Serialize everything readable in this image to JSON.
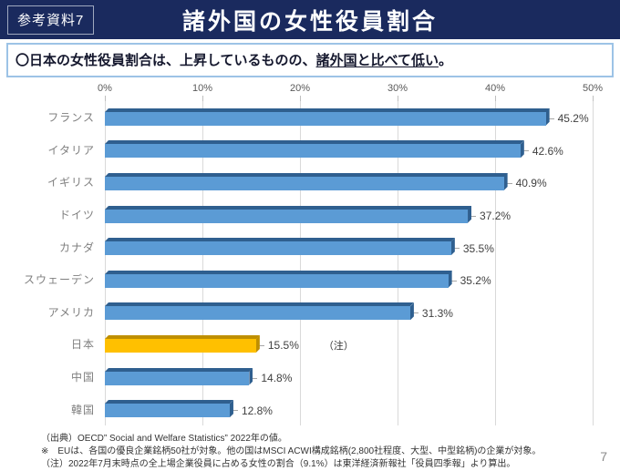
{
  "header": {
    "badge": "参考資料7",
    "title": "諸外国の女性役員割合"
  },
  "subtitle": {
    "prefix": "〇日本の女性役員割合は、上昇しているものの、",
    "underlined": "諸外国と比べて低い",
    "suffix": "。"
  },
  "chart_data": {
    "type": "bar",
    "orientation": "horizontal",
    "title": "",
    "xlabel": "",
    "ylabel": "",
    "xlim": [
      0,
      50
    ],
    "x_ticks": [
      "0%",
      "10%",
      "20%",
      "30%",
      "40%",
      "50%"
    ],
    "grid": true,
    "legend": false,
    "categories": [
      "フランス",
      "イタリア",
      "イギリス",
      "ドイツ",
      "カナダ",
      "スウェーデン",
      "アメリカ",
      "日本",
      "中国",
      "韓国"
    ],
    "values": [
      45.2,
      42.6,
      40.9,
      37.2,
      35.5,
      35.2,
      31.3,
      15.5,
      14.8,
      12.8
    ],
    "value_labels": [
      "45.2%",
      "42.6%",
      "40.9%",
      "37.2%",
      "35.5%",
      "35.2%",
      "31.3%",
      "15.5%",
      "14.8%",
      "12.8%"
    ],
    "annotations": [
      {
        "category": "日本",
        "text": "（注）"
      }
    ],
    "bar_color": "#5B9BD5",
    "bar_color_dark": "#2F5F8F",
    "highlight_category": "日本",
    "highlight_color": "#FFC000",
    "highlight_color_dark": "#BF8F00"
  },
  "footnotes": {
    "line1": "（出典）OECD” Social and Welfare Statistics” 2022年の値。",
    "line2": "※　EUは、各国の優良企業銘柄50社が対象。他の国はMSCI ACWI構成銘柄(2,800社程度、大型、中型銘柄)の企業が対象。",
    "line3": "（注）2022年7月末時点の全上場企業役員に占める女性の割合（9.1%）は東洋経済新報社「役員四季報」より算出。"
  },
  "page_number": "7",
  "colors": {
    "header_bg": "#1A2A5E",
    "subtitle_border": "#9DC3E6",
    "gridline": "#D9D9D9",
    "tick_label": "#595959",
    "category_label": "#7F7F7F",
    "value_label": "#404040"
  }
}
